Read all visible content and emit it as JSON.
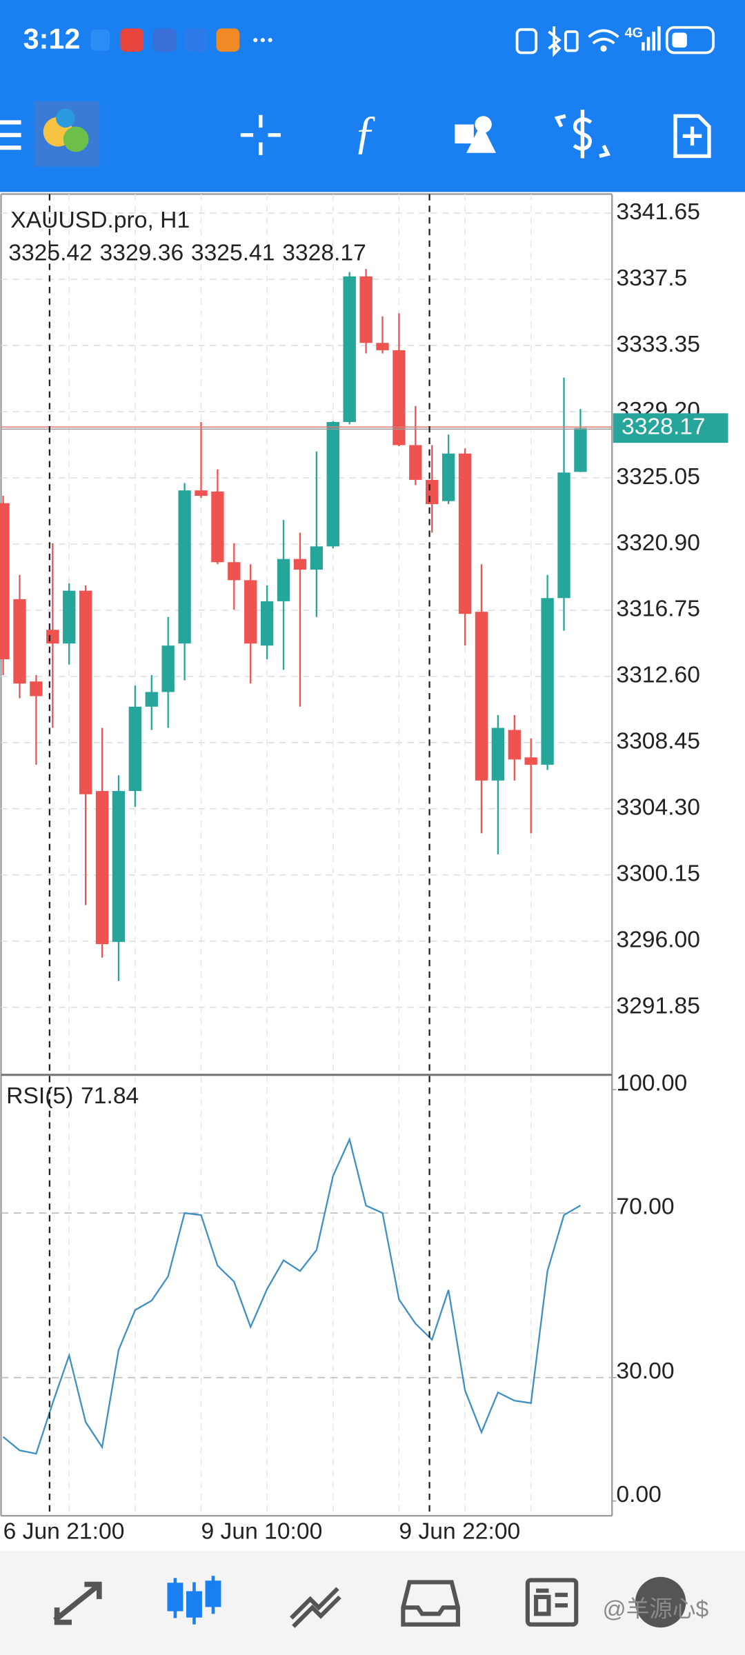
{
  "status_bar": {
    "time": "3:12",
    "network": "4G"
  },
  "watermark": "@羊源心$",
  "chart_data": [
    {
      "type": "candlestick",
      "title": "XAUUSD.pro, H1",
      "categories": [
        "6 Jun 21:00",
        null,
        null,
        null,
        null,
        null,
        null,
        null,
        null,
        null,
        null,
        null,
        "9 Jun 10:00",
        null,
        null,
        null,
        null,
        null,
        null,
        null,
        null,
        null,
        null,
        null,
        "9 Jun 22:00",
        null,
        null,
        null,
        null,
        null,
        null,
        null,
        null,
        null,
        null,
        null
      ],
      "candles": [
        {
          "open": 3323.46,
          "high": 3323.92,
          "low": 3312.68,
          "close": 3313.67
        },
        {
          "open": 3317.44,
          "high": 3318.96,
          "low": 3311.23,
          "close": 3312.15
        },
        {
          "open": 3312.28,
          "high": 3312.68,
          "low": 3307.06,
          "close": 3311.36
        },
        {
          "open": 3315.52,
          "high": 3320.95,
          "low": 3309.37,
          "close": 3314.66
        },
        {
          "open": 3314.66,
          "high": 3318.43,
          "low": 3313.34,
          "close": 3317.97
        },
        {
          "open": 3317.97,
          "high": 3318.3,
          "low": 3298.26,
          "close": 3305.21
        },
        {
          "open": 3305.41,
          "high": 3309.37,
          "low": 3294.96,
          "close": 3295.81
        },
        {
          "open": 3295.95,
          "high": 3306.4,
          "low": 3293.5,
          "close": 3305.41
        },
        {
          "open": 3305.41,
          "high": 3312.02,
          "low": 3304.41,
          "close": 3310.7
        },
        {
          "open": 3310.7,
          "high": 3312.68,
          "low": 3309.24,
          "close": 3311.62
        },
        {
          "open": 3311.62,
          "high": 3316.32,
          "low": 3309.37,
          "close": 3314.53
        },
        {
          "open": 3314.66,
          "high": 3324.72,
          "low": 3312.35,
          "close": 3324.26
        },
        {
          "open": 3324.26,
          "high": 3328.55,
          "low": 3323.79,
          "close": 3323.92
        },
        {
          "open": 3324.19,
          "high": 3325.58,
          "low": 3319.63,
          "close": 3319.76
        },
        {
          "open": 3319.76,
          "high": 3320.95,
          "low": 3316.78,
          "close": 3318.63
        },
        {
          "open": 3318.63,
          "high": 3319.63,
          "low": 3312.15,
          "close": 3314.66
        },
        {
          "open": 3314.53,
          "high": 3318.3,
          "low": 3313.67,
          "close": 3317.31
        },
        {
          "open": 3317.31,
          "high": 3322.4,
          "low": 3313.01,
          "close": 3319.96
        },
        {
          "open": 3319.96,
          "high": 3321.61,
          "low": 3310.7,
          "close": 3319.29
        },
        {
          "open": 3319.29,
          "high": 3326.7,
          "low": 3316.32,
          "close": 3320.75
        },
        {
          "open": 3320.75,
          "high": 3328.6,
          "low": 3320.62,
          "close": 3328.55
        },
        {
          "open": 3328.55,
          "high": 3337.95,
          "low": 3328.4,
          "close": 3337.68
        },
        {
          "open": 3337.68,
          "high": 3338.14,
          "low": 3332.85,
          "close": 3333.51
        },
        {
          "open": 3333.51,
          "high": 3335.17,
          "low": 3332.85,
          "close": 3333.05
        },
        {
          "open": 3333.05,
          "high": 3335.37,
          "low": 3327.03,
          "close": 3327.1
        },
        {
          "open": 3327.1,
          "high": 3329.55,
          "low": 3324.59,
          "close": 3324.92
        },
        {
          "open": 3324.92,
          "high": 3327.1,
          "low": 3321.61,
          "close": 3323.4
        },
        {
          "open": 3323.59,
          "high": 3327.76,
          "low": 3323.4,
          "close": 3326.57
        },
        {
          "open": 3326.57,
          "high": 3326.9,
          "low": 3314.53,
          "close": 3316.52
        },
        {
          "open": 3316.65,
          "high": 3319.63,
          "low": 3302.76,
          "close": 3306.07
        },
        {
          "open": 3306.07,
          "high": 3310.17,
          "low": 3301.44,
          "close": 3309.37
        },
        {
          "open": 3309.24,
          "high": 3310.17,
          "low": 3306.07,
          "close": 3307.39
        },
        {
          "open": 3307.52,
          "high": 3308.71,
          "low": 3302.76,
          "close": 3307.06
        },
        {
          "open": 3307.06,
          "high": 3318.96,
          "low": 3306.73,
          "close": 3317.51
        },
        {
          "open": 3317.51,
          "high": 3331.33,
          "low": 3315.46,
          "close": 3325.38
        },
        {
          "open": 3325.42,
          "high": 3329.36,
          "low": 3325.41,
          "close": 3328.17
        }
      ],
      "up_color": "#26a69a",
      "down_color": "#ef5350",
      "ylim": [
        3287.68,
        3342.84
      ],
      "yticks": [
        3341.65,
        3337.5,
        3333.35,
        {
          "value": 3329.2,
          "label": "3329.20"
        },
        3325.05,
        {
          "value": 3320.9,
          "label": "3320.90"
        },
        3316.75,
        {
          "value": 3312.6,
          "label": "3312.60"
        },
        3308.45,
        {
          "value": 3304.3,
          "label": "3304.30"
        },
        3300.15,
        {
          "value": 3296,
          "label": "3296.00"
        },
        3291.85
      ],
      "grid": true
    },
    {
      "type": "line",
      "title": "RSI(5)",
      "color": "#3d8fc4",
      "values": [
        15.6,
        12.3,
        11.5,
        23.8,
        35.4,
        19.2,
        13.1,
        36.7,
        46.4,
        48.7,
        54.6,
        70.0,
        69.5,
        57.2,
        53.3,
        42.3,
        51.5,
        58.5,
        55.9,
        61.0,
        79.0,
        87.9,
        71.8,
        70.0,
        49.0,
        43.1,
        39.2,
        51.3,
        26.9,
        16.7,
        26.4,
        24.4,
        23.8,
        55.9,
        69.5,
        71.84
      ],
      "ylim": [
        -3.59,
        103.33
      ],
      "yticks": [
        {
          "value": 100,
          "label": "100.00"
        },
        {
          "value": 70,
          "label": "70.00"
        },
        {
          "value": 30,
          "label": "30.00"
        },
        {
          "value": 0,
          "label": "0.00"
        }
      ],
      "levels": [
        70,
        30
      ]
    }
  ]
}
